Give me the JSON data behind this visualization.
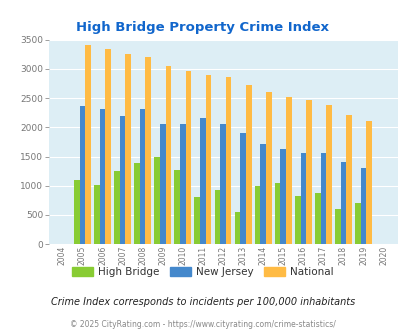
{
  "title": "High Bridge Property Crime Index",
  "years": [
    2004,
    2005,
    2006,
    2007,
    2008,
    2009,
    2010,
    2011,
    2012,
    2013,
    2014,
    2015,
    2016,
    2017,
    2018,
    2019,
    2020
  ],
  "high_bridge": [
    0,
    1100,
    1020,
    1250,
    1390,
    1500,
    1270,
    800,
    920,
    550,
    990,
    1050,
    820,
    870,
    600,
    710,
    0
  ],
  "new_jersey": [
    0,
    2360,
    2310,
    2200,
    2320,
    2060,
    2060,
    2160,
    2050,
    1900,
    1720,
    1620,
    1560,
    1560,
    1400,
    1310,
    0
  ],
  "national": [
    0,
    3410,
    3340,
    3260,
    3200,
    3050,
    2960,
    2900,
    2860,
    2730,
    2600,
    2510,
    2460,
    2380,
    2210,
    2110,
    0
  ],
  "high_bridge_color": "#88cc33",
  "new_jersey_color": "#4488cc",
  "national_color": "#ffbb44",
  "plot_bg_color": "#ddeef5",
  "ylim": [
    0,
    3500
  ],
  "yticks": [
    0,
    500,
    1000,
    1500,
    2000,
    2500,
    3000,
    3500
  ],
  "subtitle": "Crime Index corresponds to incidents per 100,000 inhabitants",
  "footer": "© 2025 CityRating.com - https://www.cityrating.com/crime-statistics/",
  "legend_labels": [
    "High Bridge",
    "New Jersey",
    "National"
  ]
}
